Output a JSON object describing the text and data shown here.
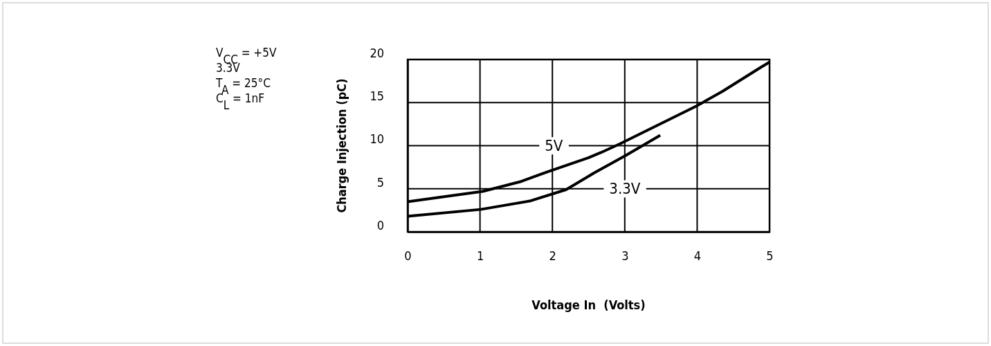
{
  "chart_data": {
    "type": "line",
    "xlabel": "Voltage In  (Volts)",
    "ylabel": "Charge Injection (pC)",
    "annotations": [
      "V$_{CC}$ = +5V",
      "3.3V",
      "T$_{A}$ = 25°C",
      "C$_{L}$ = 1nF"
    ],
    "series": [
      {
        "name": "5V",
        "color": "#000000",
        "x": [
          0,
          1.04,
          1.55,
          1.91,
          2.5,
          2.67,
          2.93,
          3.99,
          4.35,
          4.88,
          5
        ],
        "values": [
          3.5,
          4.7,
          5.8,
          6.9,
          8.6,
          9.2,
          10.2,
          14.6,
          16.3,
          19.1,
          19.7
        ]
      },
      {
        "name": "3.3V",
        "color": "#000000",
        "x": [
          0,
          1.01,
          1.7,
          2.19,
          2.57,
          3.02,
          3.49
        ],
        "values": [
          1.8,
          2.6,
          3.6,
          4.9,
          6.8,
          8.9,
          11.2
        ]
      }
    ],
    "xlim": [
      0,
      5
    ],
    "xticks": [
      0,
      1,
      2,
      3,
      4,
      5
    ],
    "ylim": [
      0,
      20
    ],
    "yticks": [
      0,
      5,
      10,
      15,
      20
    ],
    "grid": true,
    "marker": "none",
    "line_style": "solid"
  }
}
